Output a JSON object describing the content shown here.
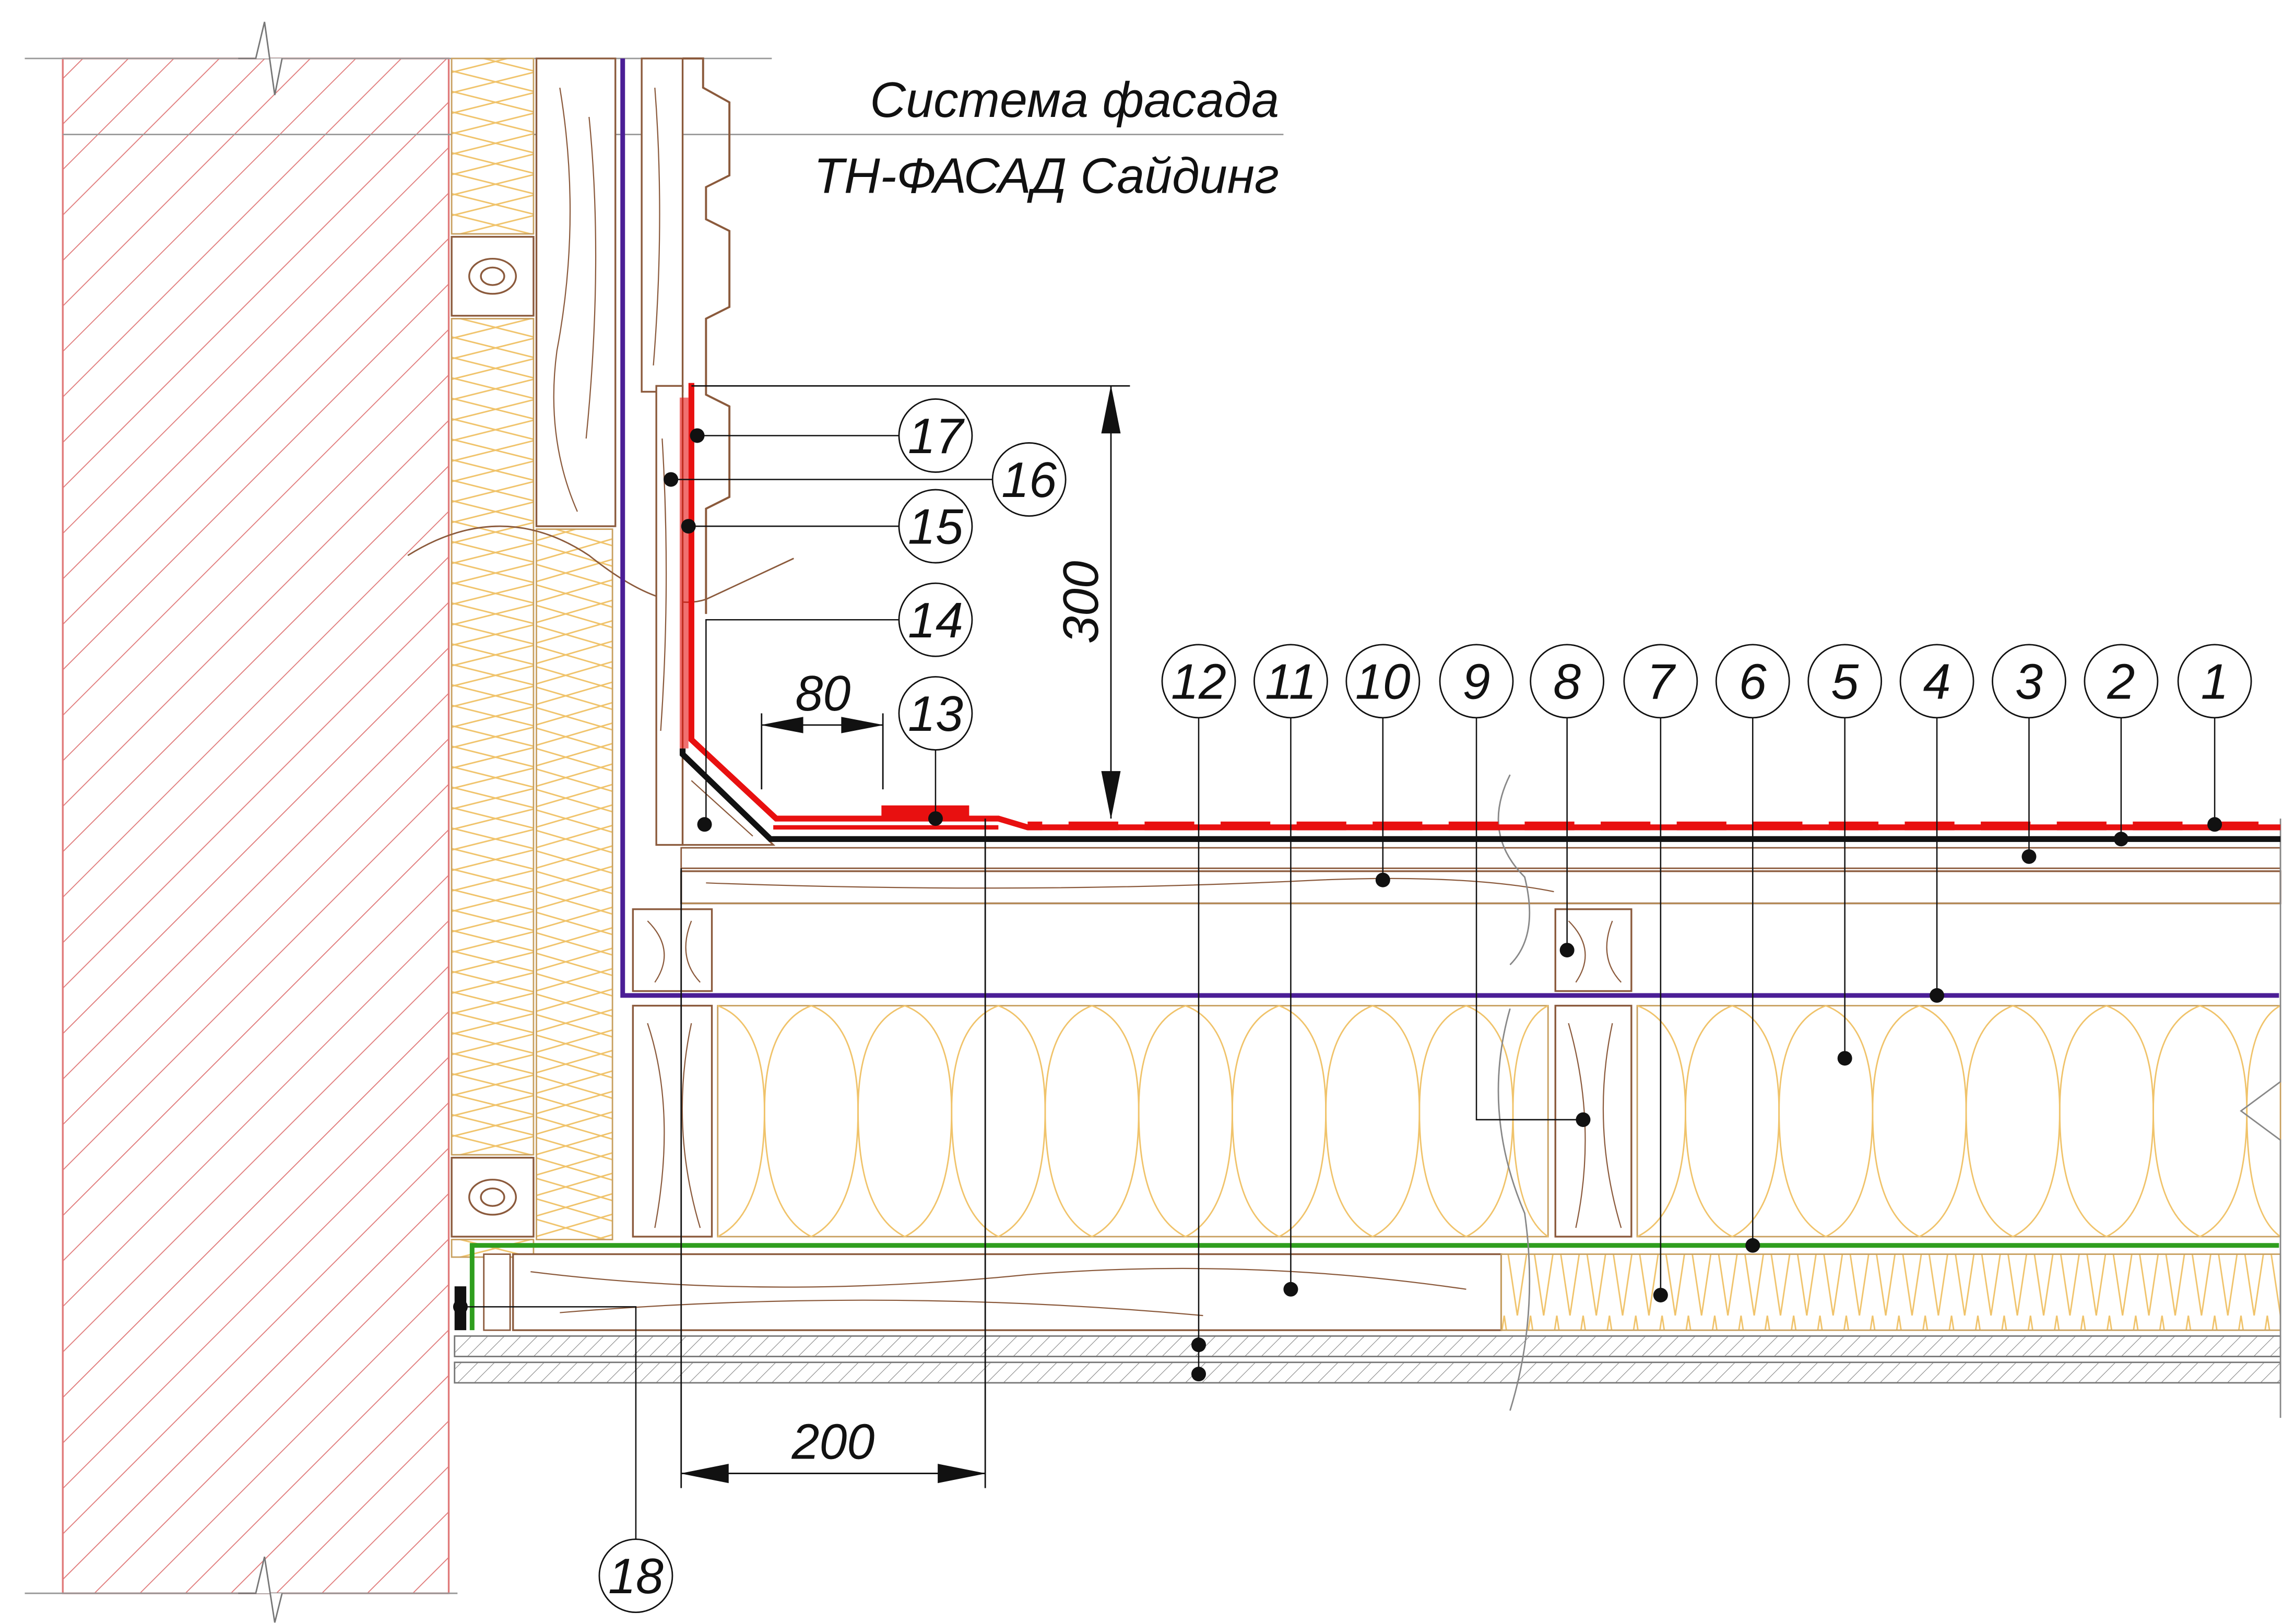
{
  "title": {
    "line1": "Система фасада",
    "line2": "ТН-ФАСАД Сайдинг"
  },
  "dimensions": {
    "vertical": "300",
    "overlap": "80",
    "horizontal": "200"
  },
  "callouts": [
    "1",
    "2",
    "3",
    "4",
    "5",
    "6",
    "7",
    "8",
    "9",
    "10",
    "11",
    "12",
    "13",
    "14",
    "15",
    "16",
    "17",
    "18"
  ],
  "colors": {
    "masonry_hatch": "#e07a7a",
    "insulation": "#f0c36a",
    "wood": "#8b5a3c",
    "vapor_barrier": "#4b1e96",
    "membrane_red": "#e81010",
    "waterproofing_green": "#2f9e1e",
    "line_black": "#111111"
  }
}
